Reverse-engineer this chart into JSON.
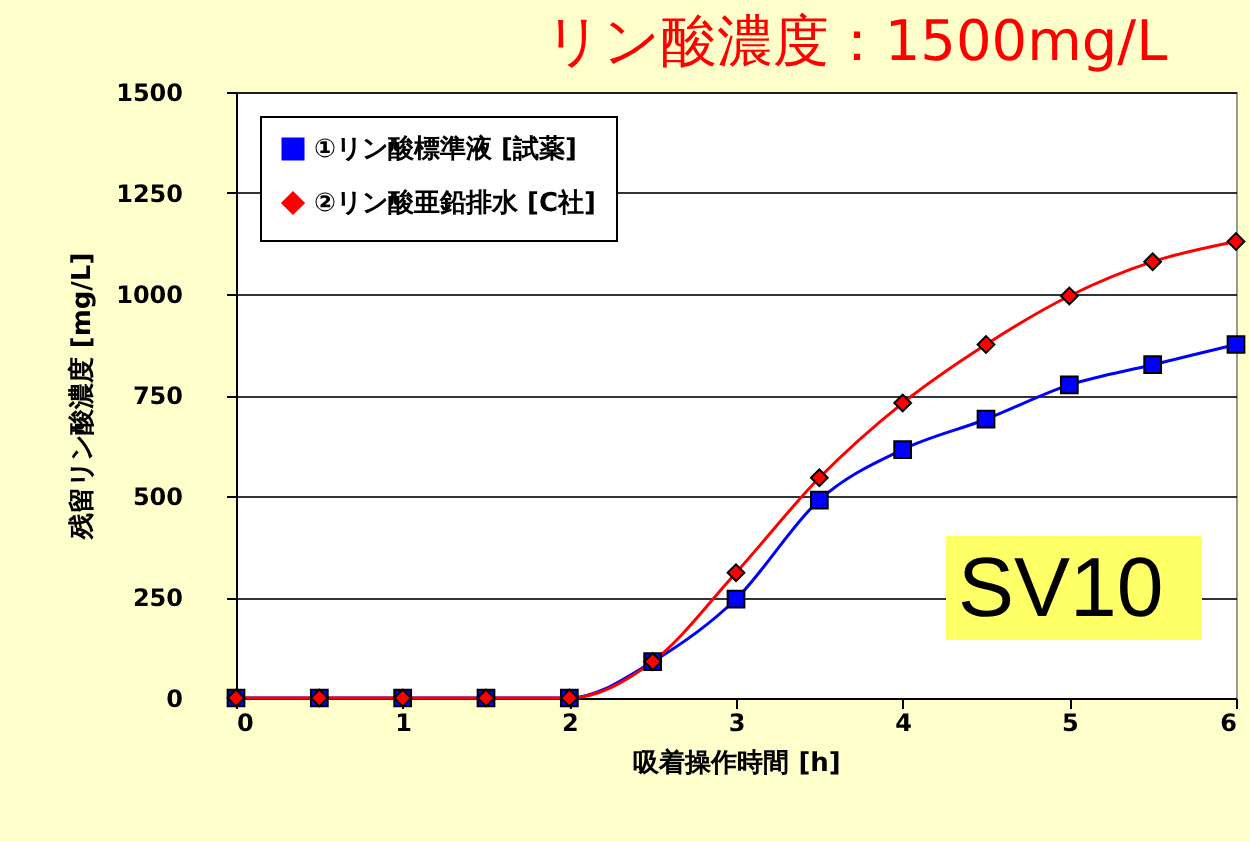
{
  "chart_data": {
    "type": "line",
    "title": "リン酸濃度：1500mg/L",
    "xlabel": "吸着操作時間 [h]",
    "ylabel": "残留リン酸濃度 [mg/L]",
    "x": [
      0,
      0.5,
      1,
      1.5,
      2,
      2.5,
      3,
      3.5,
      4,
      4.5,
      5,
      5.5,
      6
    ],
    "series": [
      {
        "name": "①リン酸標準液 [試薬]",
        "color": "#0000ff",
        "marker": "square",
        "values": [
          0,
          0,
          0,
          0,
          0,
          90,
          245,
          490,
          615,
          690,
          775,
          825,
          875
        ]
      },
      {
        "name": "②リン酸亜鉛排水 [C社]",
        "color": "#ff0000",
        "marker": "diamond",
        "values": [
          0,
          0,
          0,
          0,
          0,
          90,
          310,
          545,
          730,
          875,
          995,
          1080,
          1130
        ]
      }
    ],
    "xlim": [
      0,
      6
    ],
    "xticks": [
      0,
      1,
      2,
      3,
      4,
      5,
      6
    ],
    "ylim": [
      0,
      1500
    ],
    "yticks": [
      0,
      250,
      500,
      750,
      1000,
      1250,
      1500
    ],
    "grid": "y",
    "legend": "top left",
    "annotations": [
      "SV10"
    ]
  }
}
